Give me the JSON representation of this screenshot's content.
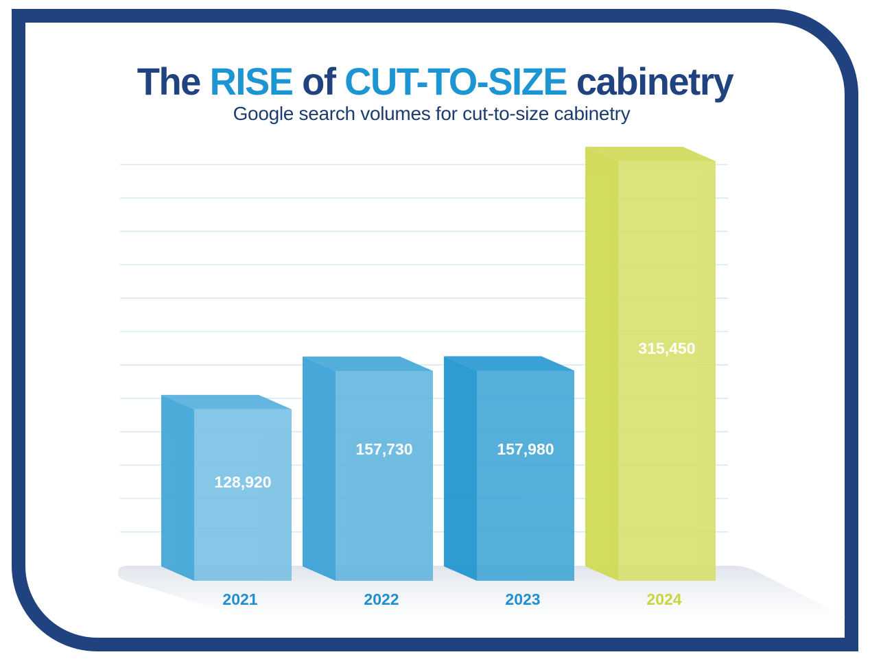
{
  "header": {
    "title_parts": [
      {
        "text": "The ",
        "highlight": false
      },
      {
        "text": "RISE",
        "highlight": true
      },
      {
        "text": " of ",
        "highlight": false
      },
      {
        "text": "CUT-TO-SIZE",
        "highlight": true
      },
      {
        "text": " cabinetry",
        "highlight": false
      }
    ],
    "subtitle": "Google search volumes for cut-to-size cabinetry"
  },
  "colors": {
    "frame": "#20427f",
    "title": "#20427f",
    "highlight": "#1e95d3",
    "gridline": "#d6e9f3",
    "floor": "#e4e8ee"
  },
  "chart_data": {
    "type": "bar",
    "title": "The RISE of CUT-TO-SIZE cabinetry",
    "subtitle": "Google search volumes for cut-to-size cabinetry",
    "xlabel": "",
    "ylabel": "",
    "categories": [
      "2021",
      "2022",
      "2023",
      "2024"
    ],
    "values": [
      128920,
      157730,
      157980,
      315450
    ],
    "value_labels": [
      "128,920",
      "157,730",
      "157,980",
      "315,450"
    ],
    "ylim": [
      0,
      315450
    ],
    "grid": true,
    "legend": "none",
    "bar_colors": [
      {
        "front": "#74bde2",
        "side": "#44a7d8",
        "top": "#5cb2de",
        "label": "#1e8fd0"
      },
      {
        "front": "#5db3dd",
        "side": "#3ea3d6",
        "top": "#4aaad9",
        "label": "#1e8fd0"
      },
      {
        "front": "#3ca3d5",
        "side": "#2497cf",
        "top": "#2f9dd2",
        "label": "#1e8fd0"
      },
      {
        "front": "#d6de68",
        "side": "#d0da55",
        "top": "#d3db5d",
        "label": "#c9d43e"
      }
    ]
  }
}
